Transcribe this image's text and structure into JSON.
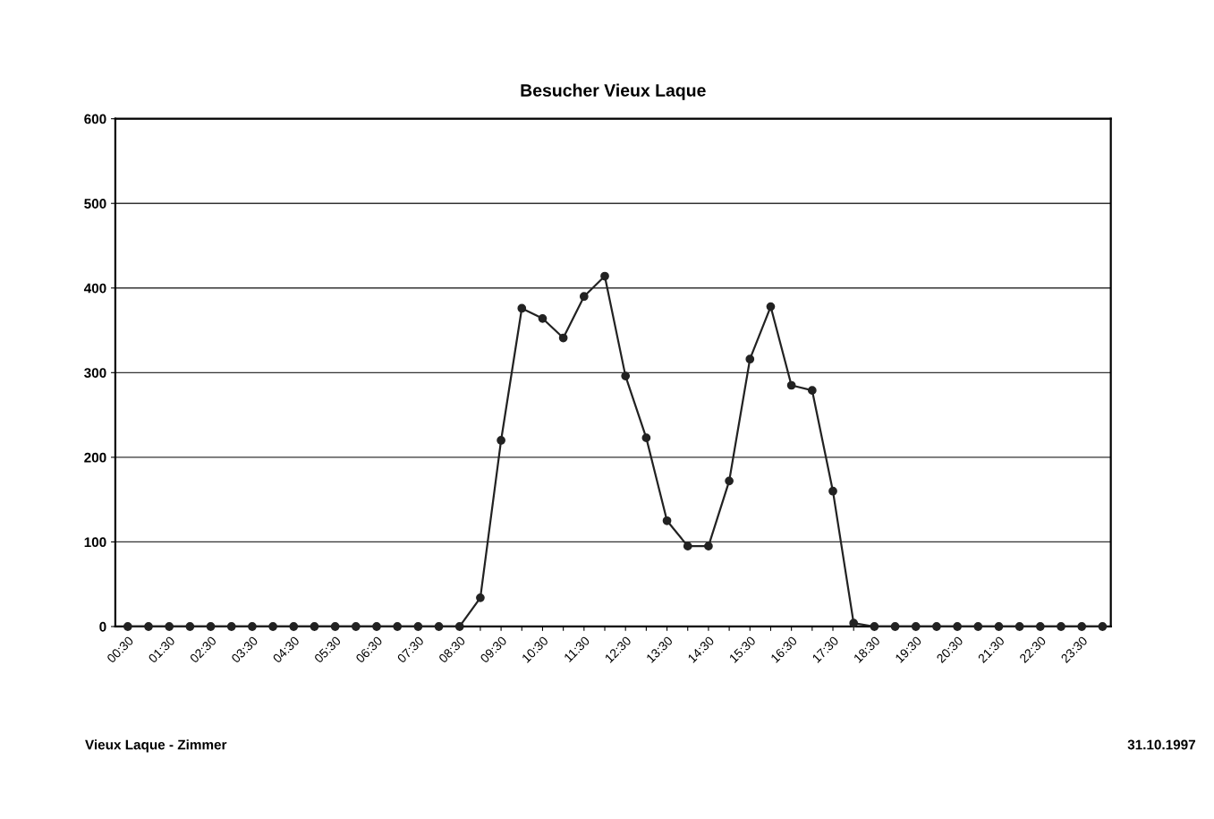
{
  "chart_data": {
    "type": "line",
    "title": "Besucher Vieux Laque",
    "categories": [
      "00:30",
      null,
      "01:30",
      null,
      "02:30",
      null,
      "03:30",
      null,
      "04:30",
      null,
      "05:30",
      null,
      "06:30",
      null,
      "07:30",
      null,
      "08:30",
      null,
      "09:30",
      null,
      "10:30",
      null,
      "11:30",
      null,
      "12:30",
      null,
      "13:30",
      null,
      "14:30",
      null,
      "15:30",
      null,
      "16:30",
      null,
      "17:30",
      null,
      "18:30",
      null,
      "19:30",
      null,
      "20:30",
      null,
      "21:30",
      null,
      "22:30",
      null,
      "23:30",
      null
    ],
    "series": [
      {
        "color": "#222222",
        "values": [
          0,
          0,
          0,
          0,
          0,
          0,
          0,
          0,
          0,
          0,
          0,
          0,
          0,
          0,
          0,
          0,
          0,
          34,
          220,
          376,
          364,
          341,
          390,
          414,
          296,
          223,
          125,
          95,
          95,
          172,
          316,
          378,
          285,
          279,
          160,
          4,
          0,
          0,
          0,
          0,
          0,
          0,
          0,
          0,
          0,
          0,
          0,
          0
        ]
      }
    ],
    "ylim": [
      0,
      600
    ],
    "yticks": [
      0,
      100,
      200,
      300,
      400,
      500,
      600
    ],
    "grid": "y",
    "marker": "circle",
    "line_style": "solid",
    "annotations": [
      "Vieux Laque - Zimmer",
      "31.10.1997"
    ]
  }
}
